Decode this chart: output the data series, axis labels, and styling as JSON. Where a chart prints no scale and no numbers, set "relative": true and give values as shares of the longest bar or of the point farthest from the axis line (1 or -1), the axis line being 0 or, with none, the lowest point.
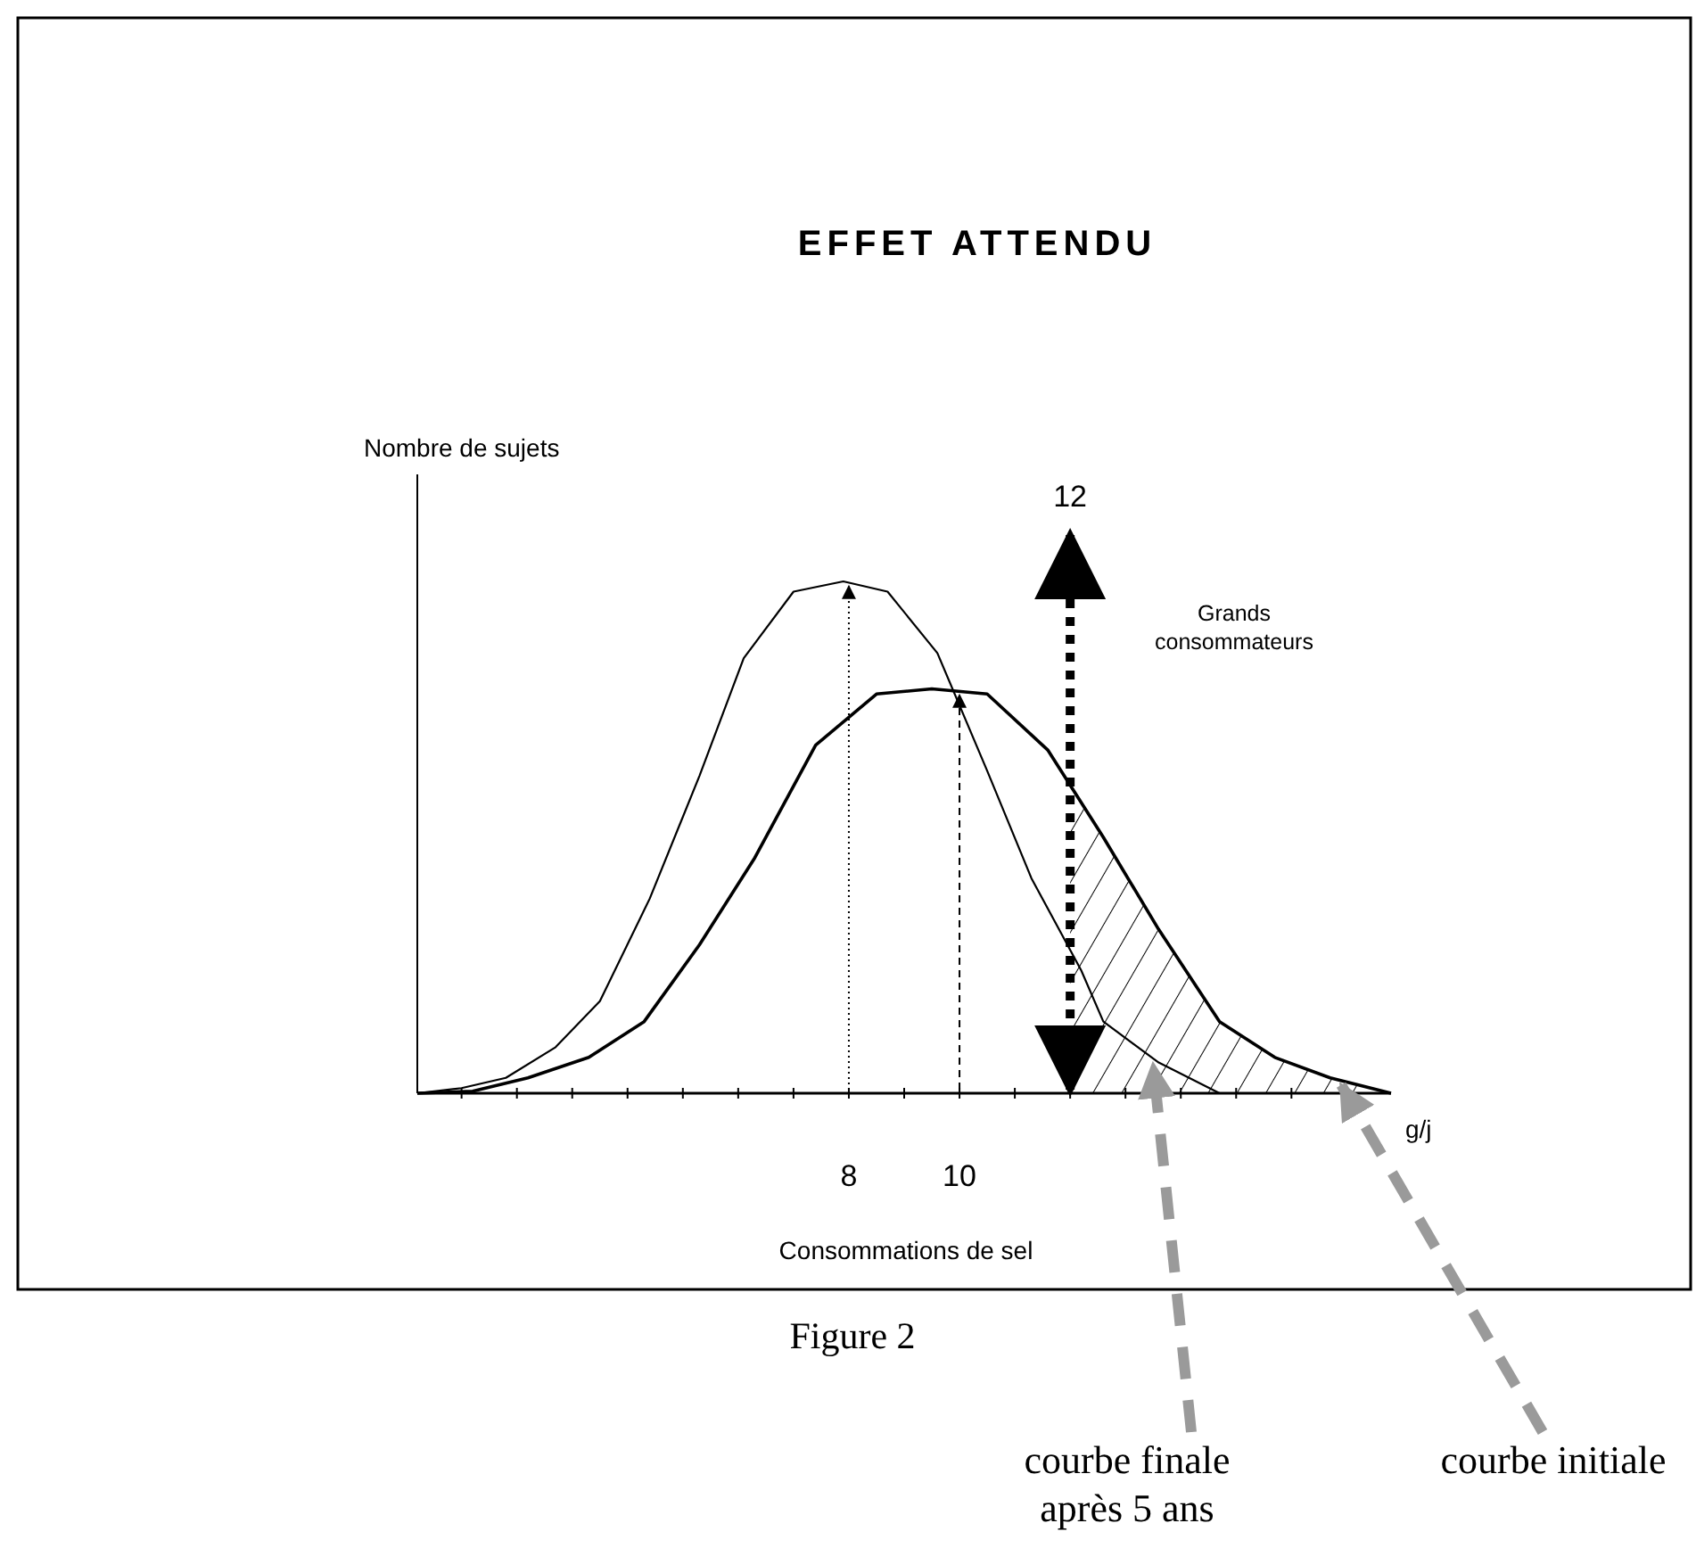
{
  "chart_data": {
    "type": "line",
    "title": "EFFET ATTENDU",
    "ylabel": "Nombre de sujets",
    "xlabel": "Consommations de sel",
    "relative": true,
    "xlim": [
      0.2,
      17.8
    ],
    "xticks": [
      {
        "value": 1,
        "label": null
      },
      {
        "value": 2,
        "label": null
      },
      {
        "value": 3,
        "label": null
      },
      {
        "value": 4,
        "label": null
      },
      {
        "value": 5,
        "label": null
      },
      {
        "value": 6,
        "label": null
      },
      {
        "value": 7,
        "label": null
      },
      8,
      {
        "value": 9,
        "label": null
      },
      10,
      {
        "value": 11,
        "label": null
      },
      {
        "value": 12,
        "label": null
      },
      {
        "value": 13,
        "label": null
      },
      {
        "value": 14,
        "label": null
      },
      {
        "value": 15,
        "label": null
      },
      {
        "value": 16,
        "label": null
      },
      {
        "value": 17,
        "label": null
      }
    ],
    "series": [
      {
        "color": "#000000",
        "x": [
          0.2,
          1.0,
          1.8,
          2.7,
          3.5,
          4.4,
          5.3,
          6.1,
          7.0,
          7.9,
          8.7,
          9.6,
          10.5,
          11.3,
          12.2,
          12.6,
          13.6,
          14.7
        ],
        "values": [
          0,
          0.01,
          0.03,
          0.09,
          0.18,
          0.38,
          0.62,
          0.85,
          0.98,
          1.0,
          0.98,
          0.86,
          0.63,
          0.42,
          0.24,
          0.14,
          0.06,
          0
        ]
      },
      {
        "color": "#000000",
        "x": [
          0.2,
          1.2,
          2.2,
          3.3,
          4.3,
          5.3,
          6.3,
          7.4,
          8.5,
          9.5,
          10.5,
          11.6,
          12.6,
          13.6,
          14.7,
          15.7,
          16.7,
          17.8
        ],
        "values": [
          0,
          0.004,
          0.03,
          0.07,
          0.14,
          0.29,
          0.46,
          0.68,
          0.78,
          0.79,
          0.78,
          0.67,
          0.5,
          0.32,
          0.14,
          0.07,
          0.03,
          0
        ]
      }
    ],
    "ref_lines": [
      {
        "axis": "x",
        "value": 8,
        "line_style": "dotted"
      },
      {
        "axis": "x",
        "value": 10,
        "line_style": "dashed"
      },
      {
        "axis": "x",
        "value": 12,
        "label": "12",
        "line_style": "dotted"
      }
    ],
    "annotations": [
      "g/j",
      "Figure 2",
      "Grands consommateurs",
      {
        "text": "courbe finale après 5 ans",
        "x": 13.5,
        "y": 0.07
      },
      {
        "text": "courbe initiale",
        "x": 16.9,
        "y": 0.03
      }
    ]
  }
}
